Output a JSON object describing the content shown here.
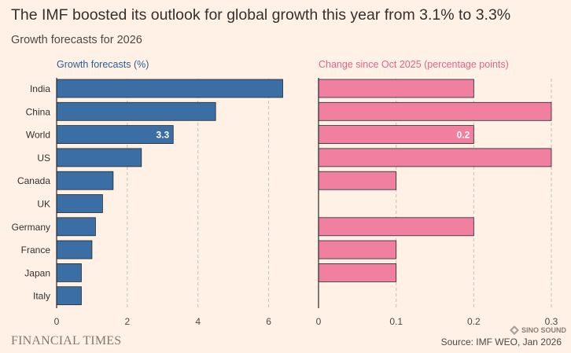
{
  "title": "The IMF boosted its outlook for global growth this year from 3.1% to 3.3%",
  "subtitle": "Growth forecasts for 2026",
  "footer": {
    "brand": "FINANCIAL TIMES",
    "source": "Source: IMF WEO, Jan 2026",
    "watermark": "SINO SOUND"
  },
  "colors": {
    "background": "#fff1e5",
    "growth_bar": "#3a6ea5",
    "change_bar": "#f07fa0",
    "bar_stroke": "#26292b",
    "grid": "#c9bfb6",
    "left_header": "#2c5e94",
    "right_header": "#e4638a"
  },
  "chart_data": [
    {
      "type": "bar",
      "orientation": "horizontal",
      "title": "Growth forecasts (%)",
      "categories": [
        "India",
        "China",
        "World",
        "US",
        "Canada",
        "UK",
        "Germany",
        "France",
        "Japan",
        "Italy"
      ],
      "values": [
        6.4,
        4.5,
        3.3,
        2.4,
        1.6,
        1.3,
        1.1,
        1.0,
        0.7,
        0.7
      ],
      "xlim": [
        0,
        6.5
      ],
      "xticks": [
        0,
        2,
        4,
        6
      ],
      "xtick_labels": [
        "0",
        "2",
        "4",
        "6"
      ],
      "data_labels": [
        {
          "category": "World",
          "text": "3.3"
        }
      ],
      "grid": "vertical dashed"
    },
    {
      "type": "bar",
      "orientation": "horizontal",
      "title": "Change since Oct 2025 (percentage points)",
      "categories": [
        "India",
        "China",
        "World",
        "US",
        "Canada",
        "UK",
        "Germany",
        "France",
        "Japan",
        "Italy"
      ],
      "values": [
        0.2,
        0.3,
        0.2,
        0.3,
        0.1,
        0.0,
        0.2,
        0.1,
        0.1,
        0.0
      ],
      "xlim": [
        0,
        0.3
      ],
      "xticks": [
        0,
        0.1,
        0.2,
        0.3
      ],
      "xtick_labels": [
        "0",
        "0.1",
        "0.2",
        "0.3"
      ],
      "data_labels": [
        {
          "category": "World",
          "text": "0.2"
        }
      ],
      "grid": "vertical dashed"
    }
  ]
}
